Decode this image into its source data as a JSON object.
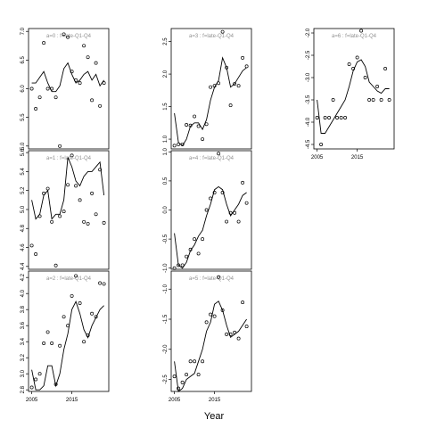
{
  "chart_data": {
    "type": "scatter",
    "xlabel": "Year",
    "panels": [
      {
        "title": "a=0  :  f=late-Q1-Q4",
        "ylim": [
          4.95,
          7.05
        ],
        "yticks": [
          5.0,
          5.5,
          6.0,
          6.5,
          7.0
        ],
        "show_xaxis": false,
        "points": [
          [
            2005,
            6.0
          ],
          [
            2006,
            5.65
          ],
          [
            2007,
            5.85
          ],
          [
            2008,
            6.8
          ],
          [
            2009,
            6.0
          ],
          [
            2010,
            6.0
          ],
          [
            2011,
            5.85
          ],
          [
            2012,
            5.0
          ],
          [
            2013,
            6.95
          ],
          [
            2014,
            6.9
          ],
          [
            2015,
            6.3
          ],
          [
            2016,
            6.15
          ],
          [
            2017,
            6.1
          ],
          [
            2018,
            6.75
          ],
          [
            2019,
            6.55
          ],
          [
            2020,
            5.8
          ],
          [
            2021,
            6.45
          ],
          [
            2022,
            5.7
          ],
          [
            2023,
            6.1
          ]
        ],
        "line": [
          [
            2005,
            6.1
          ],
          [
            2006,
            6.1
          ],
          [
            2007,
            6.2
          ],
          [
            2008,
            6.3
          ],
          [
            2009,
            6.1
          ],
          [
            2010,
            5.95
          ],
          [
            2011,
            5.95
          ],
          [
            2012,
            6.05
          ],
          [
            2013,
            6.35
          ],
          [
            2014,
            6.45
          ],
          [
            2015,
            6.25
          ],
          [
            2016,
            6.1
          ],
          [
            2017,
            6.15
          ],
          [
            2018,
            6.25
          ],
          [
            2019,
            6.3
          ],
          [
            2020,
            6.15
          ],
          [
            2021,
            6.25
          ],
          [
            2022,
            6.05
          ],
          [
            2023,
            6.15
          ]
        ]
      },
      {
        "title": "a=1  :  f=late-Q1-Q4",
        "ylim": [
          4.37,
          5.62
        ],
        "yticks": [
          4.4,
          4.6,
          4.8,
          5.0,
          5.2,
          5.4,
          5.6
        ],
        "show_xaxis": false,
        "points": [
          [
            2005,
            4.62
          ],
          [
            2006,
            4.53
          ],
          [
            2007,
            4.93
          ],
          [
            2008,
            5.17
          ],
          [
            2009,
            5.22
          ],
          [
            2010,
            4.87
          ],
          [
            2011,
            4.41
          ],
          [
            2012,
            4.93
          ],
          [
            2013,
            4.98
          ],
          [
            2014,
            5.26
          ],
          [
            2015,
            5.57
          ],
          [
            2016,
            5.25
          ],
          [
            2017,
            5.1
          ],
          [
            2018,
            4.87
          ],
          [
            2019,
            4.85
          ],
          [
            2020,
            5.17
          ],
          [
            2021,
            4.95
          ],
          [
            2022,
            5.42
          ],
          [
            2023,
            4.86
          ]
        ],
        "line": [
          [
            2005,
            5.1
          ],
          [
            2006,
            4.9
          ],
          [
            2007,
            4.95
          ],
          [
            2008,
            5.15
          ],
          [
            2009,
            5.2
          ],
          [
            2010,
            4.9
          ],
          [
            2011,
            4.95
          ],
          [
            2012,
            4.95
          ],
          [
            2013,
            5.1
          ],
          [
            2014,
            5.55
          ],
          [
            2015,
            5.45
          ],
          [
            2016,
            5.3
          ],
          [
            2017,
            5.25
          ],
          [
            2018,
            5.35
          ],
          [
            2019,
            5.4
          ],
          [
            2020,
            5.4
          ],
          [
            2021,
            5.45
          ],
          [
            2022,
            5.5
          ],
          [
            2023,
            5.15
          ]
        ]
      },
      {
        "title": "a=2  :  f=late-Q1-Q4",
        "ylim": [
          2.78,
          4.28
        ],
        "yticks": [
          2.8,
          3.0,
          3.2,
          3.4,
          3.6,
          3.8,
          4.0,
          4.2
        ],
        "show_xaxis": true,
        "points": [
          [
            2005,
            2.83
          ],
          [
            2006,
            2.93
          ],
          [
            2007,
            3.0
          ],
          [
            2008,
            3.38
          ],
          [
            2009,
            3.52
          ],
          [
            2010,
            3.38
          ],
          [
            2011,
            2.87
          ],
          [
            2012,
            3.35
          ],
          [
            2013,
            3.71
          ],
          [
            2014,
            3.6
          ],
          [
            2015,
            3.97
          ],
          [
            2016,
            4.22
          ],
          [
            2017,
            3.88
          ],
          [
            2018,
            3.4
          ],
          [
            2019,
            3.48
          ],
          [
            2020,
            3.75
          ],
          [
            2021,
            3.71
          ],
          [
            2022,
            4.13
          ],
          [
            2023,
            4.12
          ]
        ],
        "line": [
          [
            2005,
            3.05
          ],
          [
            2006,
            2.8
          ],
          [
            2007,
            2.8
          ],
          [
            2008,
            2.85
          ],
          [
            2009,
            3.1
          ],
          [
            2010,
            3.1
          ],
          [
            2011,
            2.85
          ],
          [
            2012,
            3.0
          ],
          [
            2013,
            3.3
          ],
          [
            2014,
            3.5
          ],
          [
            2015,
            3.8
          ],
          [
            2016,
            3.9
          ],
          [
            2017,
            3.75
          ],
          [
            2018,
            3.55
          ],
          [
            2019,
            3.45
          ],
          [
            2020,
            3.6
          ],
          [
            2021,
            3.7
          ],
          [
            2022,
            3.8
          ],
          [
            2023,
            3.85
          ]
        ]
      },
      {
        "title": "a=3  :  f=late-Q1-Q4",
        "ylim": [
          0.85,
          2.7
        ],
        "yticks": [
          1.0,
          1.5,
          2.0,
          2.5
        ],
        "show_xaxis": false,
        "points": [
          [
            2005,
            0.9
          ],
          [
            2006,
            0.92
          ],
          [
            2007,
            0.92
          ],
          [
            2008,
            1.22
          ],
          [
            2009,
            1.21
          ],
          [
            2010,
            1.35
          ],
          [
            2011,
            1.2
          ],
          [
            2012,
            1.0
          ],
          [
            2013,
            1.23
          ],
          [
            2014,
            1.8
          ],
          [
            2015,
            1.82
          ],
          [
            2016,
            1.86
          ],
          [
            2017,
            2.65
          ],
          [
            2018,
            2.1
          ],
          [
            2019,
            1.52
          ],
          [
            2020,
            1.85
          ],
          [
            2021,
            1.82
          ],
          [
            2022,
            2.25
          ],
          [
            2023,
            2.12
          ]
        ],
        "line": [
          [
            2005,
            1.4
          ],
          [
            2006,
            0.95
          ],
          [
            2007,
            0.9
          ],
          [
            2008,
            1.0
          ],
          [
            2009,
            1.2
          ],
          [
            2010,
            1.25
          ],
          [
            2011,
            1.25
          ],
          [
            2012,
            1.15
          ],
          [
            2013,
            1.3
          ],
          [
            2014,
            1.6
          ],
          [
            2015,
            1.8
          ],
          [
            2016,
            1.9
          ],
          [
            2017,
            2.25
          ],
          [
            2018,
            2.1
          ],
          [
            2019,
            1.8
          ],
          [
            2020,
            1.85
          ],
          [
            2021,
            1.95
          ],
          [
            2022,
            2.05
          ],
          [
            2023,
            2.1
          ]
        ]
      },
      {
        "title": "a=4  :  f=late-Q1-Q4",
        "ylim": [
          -1.02,
          1.02
        ],
        "yticks": [
          -1.0,
          -0.5,
          0.0,
          0.5,
          1.0
        ],
        "show_xaxis": false,
        "points": [
          [
            2005,
            -1.0
          ],
          [
            2006,
            -0.95
          ],
          [
            2007,
            -0.95
          ],
          [
            2008,
            -0.8
          ],
          [
            2009,
            -0.68
          ],
          [
            2010,
            -0.5
          ],
          [
            2011,
            -0.75
          ],
          [
            2012,
            -0.5
          ],
          [
            2013,
            0.0
          ],
          [
            2014,
            0.2
          ],
          [
            2015,
            0.3
          ],
          [
            2016,
            0.97
          ],
          [
            2017,
            0.3
          ],
          [
            2018,
            -0.2
          ],
          [
            2019,
            -0.05
          ],
          [
            2020,
            -0.05
          ],
          [
            2021,
            -0.2
          ],
          [
            2022,
            0.47
          ],
          [
            2023,
            0.12
          ]
        ],
        "line": [
          [
            2005,
            -0.4
          ],
          [
            2006,
            -0.95
          ],
          [
            2007,
            -1.0
          ],
          [
            2008,
            -0.9
          ],
          [
            2009,
            -0.7
          ],
          [
            2010,
            -0.6
          ],
          [
            2011,
            -0.45
          ],
          [
            2012,
            -0.35
          ],
          [
            2013,
            -0.1
          ],
          [
            2014,
            0.1
          ],
          [
            2015,
            0.35
          ],
          [
            2016,
            0.4
          ],
          [
            2017,
            0.35
          ],
          [
            2018,
            0.1
          ],
          [
            2019,
            -0.1
          ],
          [
            2020,
            0.0
          ],
          [
            2021,
            0.1
          ],
          [
            2022,
            0.25
          ],
          [
            2023,
            0.3
          ]
        ]
      },
      {
        "title": "a=5  :  f=late-Q1-Q4",
        "ylim": [
          -2.7,
          -0.7
        ],
        "yticks": [
          -2.5,
          -2.0,
          -1.5,
          -1.0
        ],
        "show_xaxis": true,
        "points": [
          [
            2005,
            -2.45
          ],
          [
            2006,
            -2.65
          ],
          [
            2007,
            -2.55
          ],
          [
            2008,
            -2.42
          ],
          [
            2009,
            -2.2
          ],
          [
            2010,
            -2.2
          ],
          [
            2011,
            -2.42
          ],
          [
            2012,
            -2.2
          ],
          [
            2013,
            -1.55
          ],
          [
            2014,
            -1.42
          ],
          [
            2015,
            -1.45
          ],
          [
            2016,
            -0.8
          ],
          [
            2017,
            -1.35
          ],
          [
            2018,
            -1.75
          ],
          [
            2019,
            -1.75
          ],
          [
            2020,
            -1.72
          ],
          [
            2021,
            -1.82
          ],
          [
            2022,
            -1.22
          ],
          [
            2023,
            -1.62
          ]
        ],
        "line": [
          [
            2005,
            -2.2
          ],
          [
            2006,
            -2.7
          ],
          [
            2007,
            -2.65
          ],
          [
            2008,
            -2.5
          ],
          [
            2009,
            -2.45
          ],
          [
            2010,
            -2.4
          ],
          [
            2011,
            -2.2
          ],
          [
            2012,
            -2.0
          ],
          [
            2013,
            -1.7
          ],
          [
            2014,
            -1.55
          ],
          [
            2015,
            -1.25
          ],
          [
            2016,
            -1.2
          ],
          [
            2017,
            -1.35
          ],
          [
            2018,
            -1.6
          ],
          [
            2019,
            -1.8
          ],
          [
            2020,
            -1.75
          ],
          [
            2021,
            -1.7
          ],
          [
            2022,
            -1.6
          ],
          [
            2023,
            -1.5
          ]
        ]
      },
      {
        "title": "a=6  :  f=late-Q1-Q4",
        "ylim": [
          -4.6,
          -1.9
        ],
        "yticks": [
          -4.5,
          -4.0,
          -3.5,
          -3.0,
          -2.5,
          -2.0
        ],
        "show_xaxis": true,
        "points": [
          [
            2005,
            -3.9
          ],
          [
            2006,
            -4.5
          ],
          [
            2007,
            -3.9
          ],
          [
            2008,
            -3.9
          ],
          [
            2009,
            -3.5
          ],
          [
            2010,
            -3.9
          ],
          [
            2011,
            -3.9
          ],
          [
            2012,
            -3.9
          ],
          [
            2013,
            -2.7
          ],
          [
            2014,
            -2.8
          ],
          [
            2015,
            -2.55
          ],
          [
            2016,
            -1.95
          ],
          [
            2017,
            -3.0
          ],
          [
            2018,
            -3.5
          ],
          [
            2019,
            -3.5
          ],
          [
            2020,
            -3.2
          ],
          [
            2021,
            -3.5
          ],
          [
            2022,
            -2.8
          ],
          [
            2023,
            -3.5
          ]
        ],
        "line": [
          [
            2005,
            -3.5
          ],
          [
            2006,
            -4.25
          ],
          [
            2007,
            -4.25
          ],
          [
            2008,
            -4.1
          ],
          [
            2009,
            -3.95
          ],
          [
            2010,
            -3.8
          ],
          [
            2011,
            -3.65
          ],
          [
            2012,
            -3.5
          ],
          [
            2013,
            -3.2
          ],
          [
            2014,
            -2.85
          ],
          [
            2015,
            -2.65
          ],
          [
            2016,
            -2.6
          ],
          [
            2017,
            -2.75
          ],
          [
            2018,
            -3.1
          ],
          [
            2019,
            -3.2
          ],
          [
            2020,
            -3.3
          ],
          [
            2021,
            -3.35
          ],
          [
            2022,
            -3.25
          ],
          [
            2023,
            -3.25
          ]
        ]
      }
    ]
  }
}
